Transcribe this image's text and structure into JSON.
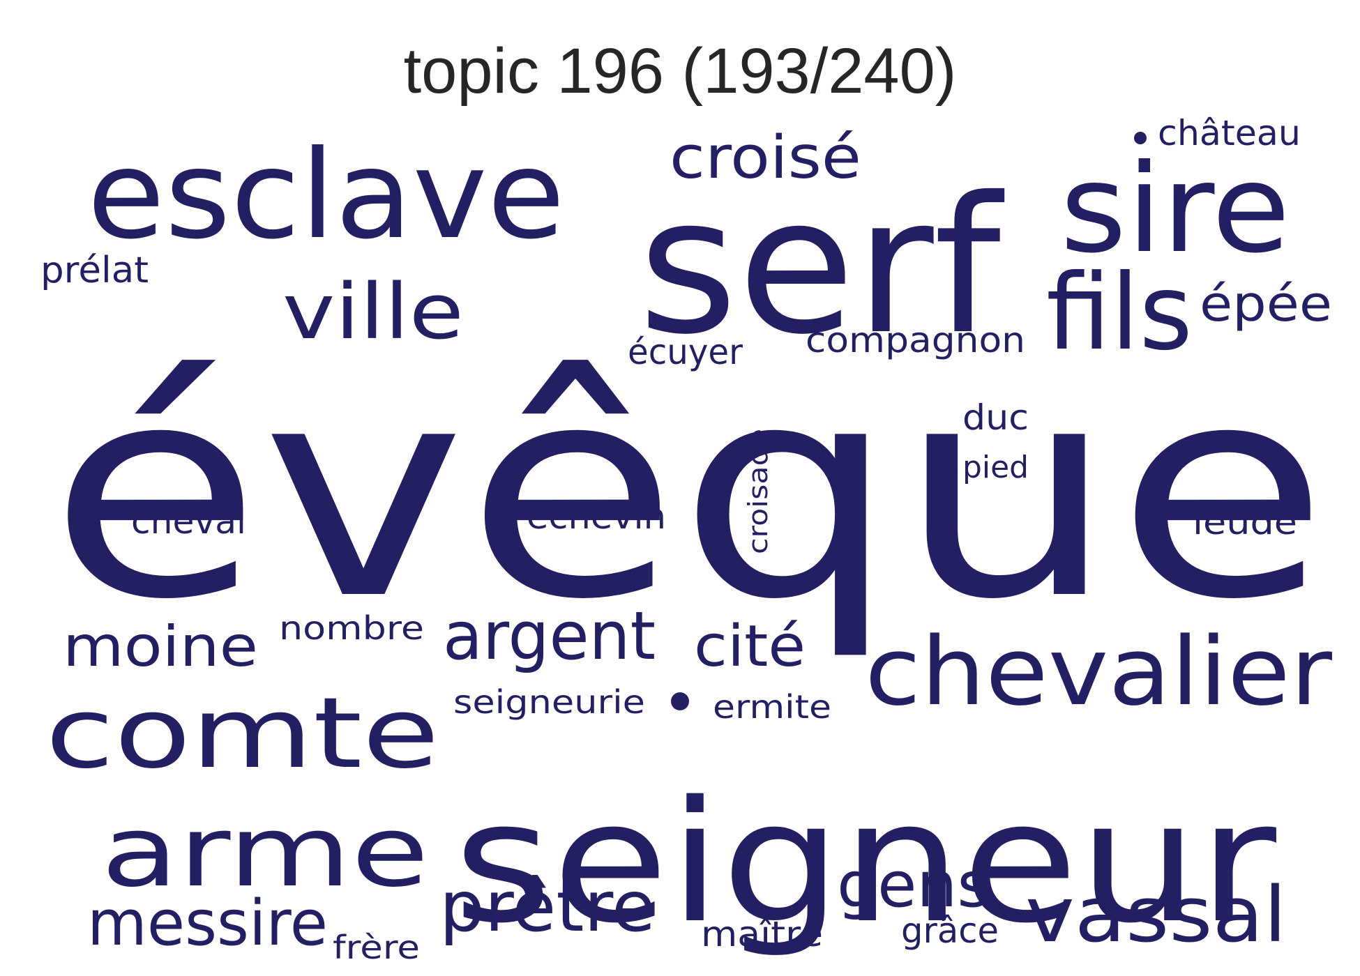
{
  "title": "topic 196 (193/240)",
  "color": "#231f63",
  "title_color": "#262626",
  "words": [
    {
      "text": "évêque"
    },
    {
      "text": "seigneur"
    },
    {
      "text": "serf"
    },
    {
      "text": "esclave"
    },
    {
      "text": "sire"
    },
    {
      "text": "chevalier"
    },
    {
      "text": "comte"
    },
    {
      "text": "arme"
    },
    {
      "text": "vassal"
    },
    {
      "text": "fils"
    },
    {
      "text": "ville"
    },
    {
      "text": "croisé"
    },
    {
      "text": "prêtre"
    },
    {
      "text": "argent"
    },
    {
      "text": "messire"
    },
    {
      "text": "moine"
    },
    {
      "text": "cité"
    },
    {
      "text": "gens"
    },
    {
      "text": "épée"
    },
    {
      "text": "compagnon"
    },
    {
      "text": "prélat"
    },
    {
      "text": "château"
    },
    {
      "text": "écuyer"
    },
    {
      "text": "duc"
    },
    {
      "text": "pied"
    },
    {
      "text": "croisade"
    },
    {
      "text": "cheval"
    },
    {
      "text": "échevin"
    },
    {
      "text": "leude"
    },
    {
      "text": "nombre"
    },
    {
      "text": "seigneurie"
    },
    {
      "text": "ermite"
    },
    {
      "text": "maître"
    },
    {
      "text": "grâce"
    },
    {
      "text": "frère"
    }
  ]
}
